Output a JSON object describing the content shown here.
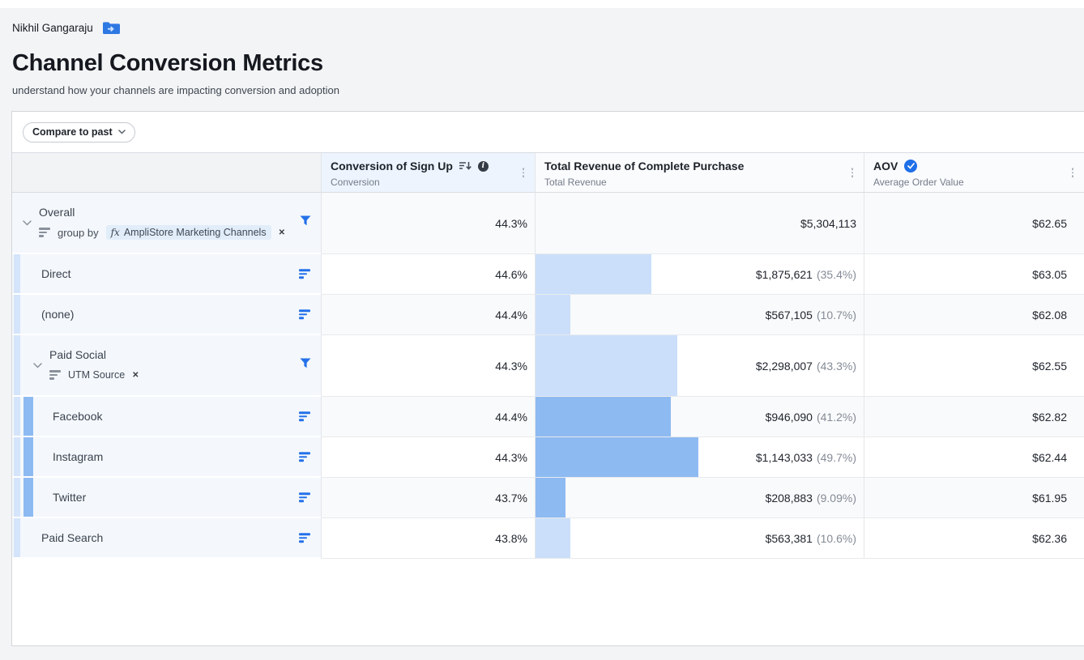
{
  "page": {
    "breadcrumb": "Nikhil Gangaraju",
    "title": "Channel Conversion Metrics",
    "subtitle": "understand how your channels are impacting conversion and adoption"
  },
  "toolbar": {
    "compare_button": "Compare to past"
  },
  "colors": {
    "bar_light": "#cbdffa",
    "bar_medium": "#8ebaf2",
    "accent_blue": "#2471e9",
    "icon_gray": "#8a919c",
    "header_selected_bg": "#edf4fe"
  },
  "table": {
    "columns": [
      {
        "title": "Conversion of Sign Up",
        "subtitle": "Conversion",
        "icons": [
          "sort-desc-icon",
          "info-icon"
        ]
      },
      {
        "title": "Total Revenue of Complete Purchase",
        "subtitle": "Total Revenue",
        "icons": []
      },
      {
        "title": "AOV",
        "subtitle": "Average Order Value",
        "badge": "verified",
        "icons": []
      }
    ],
    "rows": [
      {
        "label": "Overall",
        "depth": 0,
        "group": true,
        "group_by": "group by",
        "chip_text": "AmpliStore Marketing Channels",
        "chip_fx": true,
        "conversion": "44.3%",
        "revenue": "$5,304,113",
        "share": "",
        "share_pct": 0,
        "aov": "$62.65"
      },
      {
        "label": "Direct",
        "depth": 1,
        "group": false,
        "conversion": "44.6%",
        "revenue": "$1,875,621",
        "share": "(35.4%)",
        "share_pct": 35.4,
        "aov": "$63.05"
      },
      {
        "label": "(none)",
        "depth": 1,
        "group": false,
        "conversion": "44.4%",
        "revenue": "$567,105",
        "share": "(10.7%)",
        "share_pct": 10.7,
        "aov": "$62.08"
      },
      {
        "label": "Paid Social",
        "depth": 1,
        "group": true,
        "group_by": "",
        "chip_text": "UTM Source",
        "chip_fx": false,
        "conversion": "44.3%",
        "revenue": "$2,298,007",
        "share": "(43.3%)",
        "share_pct": 43.3,
        "aov": "$62.55"
      },
      {
        "label": "Facebook",
        "depth": 2,
        "group": false,
        "conversion": "44.4%",
        "revenue": "$946,090",
        "share": "(41.2%)",
        "share_pct": 41.2,
        "aov": "$62.82"
      },
      {
        "label": "Instagram",
        "depth": 2,
        "group": false,
        "conversion": "44.3%",
        "revenue": "$1,143,033",
        "share": "(49.7%)",
        "share_pct": 49.7,
        "aov": "$62.44"
      },
      {
        "label": "Twitter",
        "depth": 2,
        "group": false,
        "conversion": "43.7%",
        "revenue": "$208,883",
        "share": "(9.09%)",
        "share_pct": 9.09,
        "aov": "$61.95"
      },
      {
        "label": "Paid Search",
        "depth": 1,
        "group": false,
        "conversion": "43.8%",
        "revenue": "$563,381",
        "share": "(10.6%)",
        "share_pct": 10.6,
        "aov": "$62.36"
      }
    ]
  }
}
